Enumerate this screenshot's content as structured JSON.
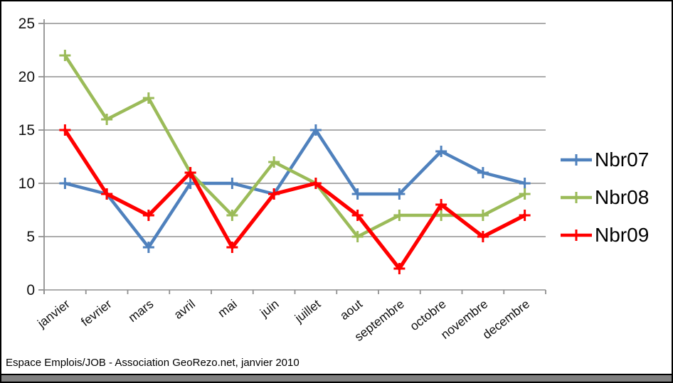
{
  "caption": "Espace Emplois/JOB - Association GeoRezo.net, janvier 2010",
  "colors": {
    "background": "#FFFFFF",
    "border": "#000000",
    "gridline": "#A0A0A0",
    "axis": "#909090",
    "tick_label": "#111111",
    "legend_text": "#000000",
    "bottom_bar": "#808080"
  },
  "chart_data": {
    "type": "line",
    "title": "",
    "xlabel": "",
    "ylabel": "",
    "grid": true,
    "legend_position": "right",
    "marker": "plus",
    "ylim": [
      0,
      25
    ],
    "ytick_step": 5,
    "yticks": [
      "0",
      "5",
      "10",
      "15",
      "20",
      "25"
    ],
    "categories": [
      "janvier",
      "fevrier",
      "mars",
      "avril",
      "mai",
      "juin",
      "juillet",
      "aout",
      "septembre",
      "octobre",
      "novembre",
      "decembre"
    ],
    "series": [
      {
        "name": "Nbr07",
        "color": "#4F81BD",
        "line_width": 4.5,
        "values": [
          10,
          9,
          4,
          10,
          10,
          9,
          15,
          9,
          9,
          13,
          11,
          10
        ]
      },
      {
        "name": "Nbr08",
        "color": "#9BBB59",
        "line_width": 4.5,
        "values": [
          22,
          16,
          18,
          11,
          7,
          12,
          10,
          5,
          7,
          7,
          7,
          9
        ]
      },
      {
        "name": "Nbr09",
        "color": "#FF0000",
        "line_width": 5.2,
        "values": [
          15,
          9,
          7,
          11,
          4,
          9,
          10,
          7,
          2,
          8,
          5,
          7
        ]
      }
    ]
  }
}
